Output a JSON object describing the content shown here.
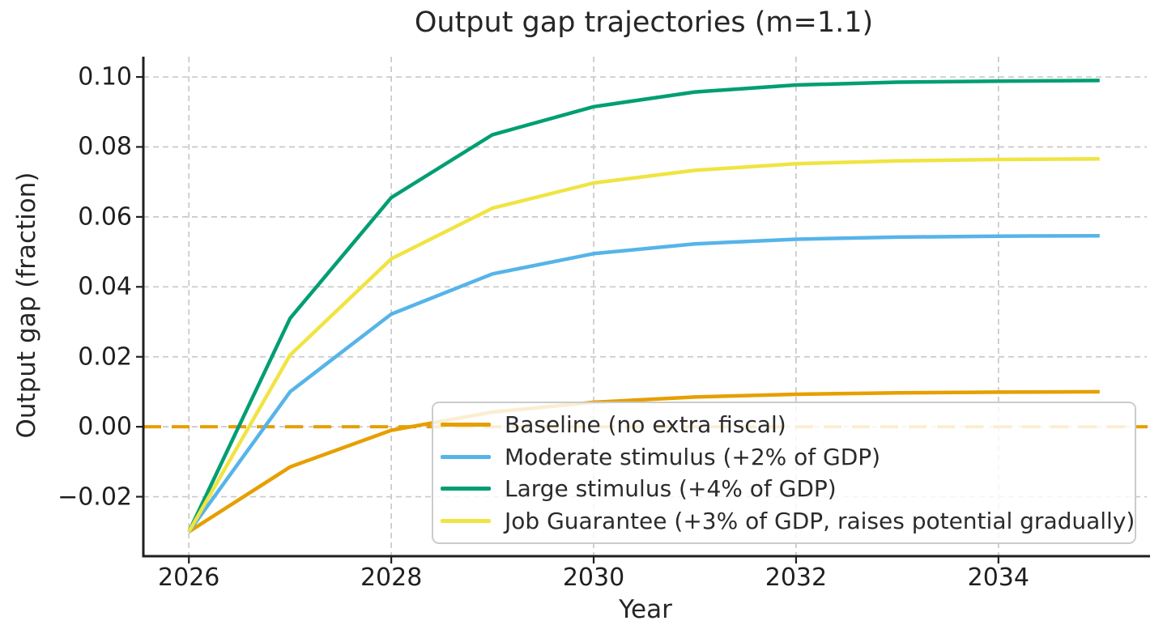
{
  "figure": {
    "title": "Output gap trajectories (m=1.1)",
    "xlabel": "Year",
    "ylabel": "Output gap (fraction)"
  },
  "chart_data": {
    "type": "line",
    "title": "Output gap trajectories (m=1.1)",
    "xlabel": "Year",
    "ylabel": "Output gap (fraction)",
    "x": [
      2026,
      2027,
      2028,
      2029,
      2030,
      2031,
      2032,
      2033,
      2034,
      2035
    ],
    "xlim": [
      2025.55,
      2035.45
    ],
    "ylim": [
      -0.037,
      0.1058
    ],
    "x_ticks": [
      2026,
      2028,
      2030,
      2032,
      2034
    ],
    "x_tick_labels": [
      "2026",
      "2028",
      "2030",
      "2032",
      "2034"
    ],
    "y_ticks": [
      -0.02,
      0.0,
      0.02,
      0.04,
      0.06,
      0.08,
      0.1
    ],
    "y_tick_labels": [
      "−0.02",
      "0.00",
      "0.02",
      "0.04",
      "0.06",
      "0.08",
      "0.10"
    ],
    "grid": true,
    "grid_style": "dashed",
    "legend_position": "lower right",
    "zero_line": {
      "y": 0.0,
      "style": "dashed",
      "color": "#E69F00"
    },
    "series": [
      {
        "name": "Baseline (no extra fiscal)",
        "color": "#E69F00",
        "values": [
          -0.03,
          -0.0115,
          -0.001,
          0.0042,
          0.007,
          0.0085,
          0.0093,
          0.0097,
          0.0099,
          0.01
        ]
      },
      {
        "name": "Moderate stimulus (+2% of GDP)",
        "color": "#56B4E9",
        "values": [
          -0.03,
          0.01,
          0.0322,
          0.0437,
          0.0495,
          0.0523,
          0.0536,
          0.0542,
          0.0545,
          0.0546
        ]
      },
      {
        "name": "Large stimulus (+4% of GDP)",
        "color": "#009E73",
        "values": [
          -0.03,
          0.031,
          0.0655,
          0.0835,
          0.0915,
          0.0957,
          0.0977,
          0.0985,
          0.0988,
          0.099
        ]
      },
      {
        "name": "Job Guarantee (+3% of GDP, raises potential gradually)",
        "color": "#F0E442",
        "values": [
          -0.03,
          0.0205,
          0.048,
          0.0625,
          0.0697,
          0.0733,
          0.0752,
          0.076,
          0.0764,
          0.0766
        ]
      }
    ]
  },
  "colors": {
    "background": "#ffffff",
    "grid": "#c9c9c9",
    "axis": "#1f1f1f",
    "text": "#262626"
  }
}
